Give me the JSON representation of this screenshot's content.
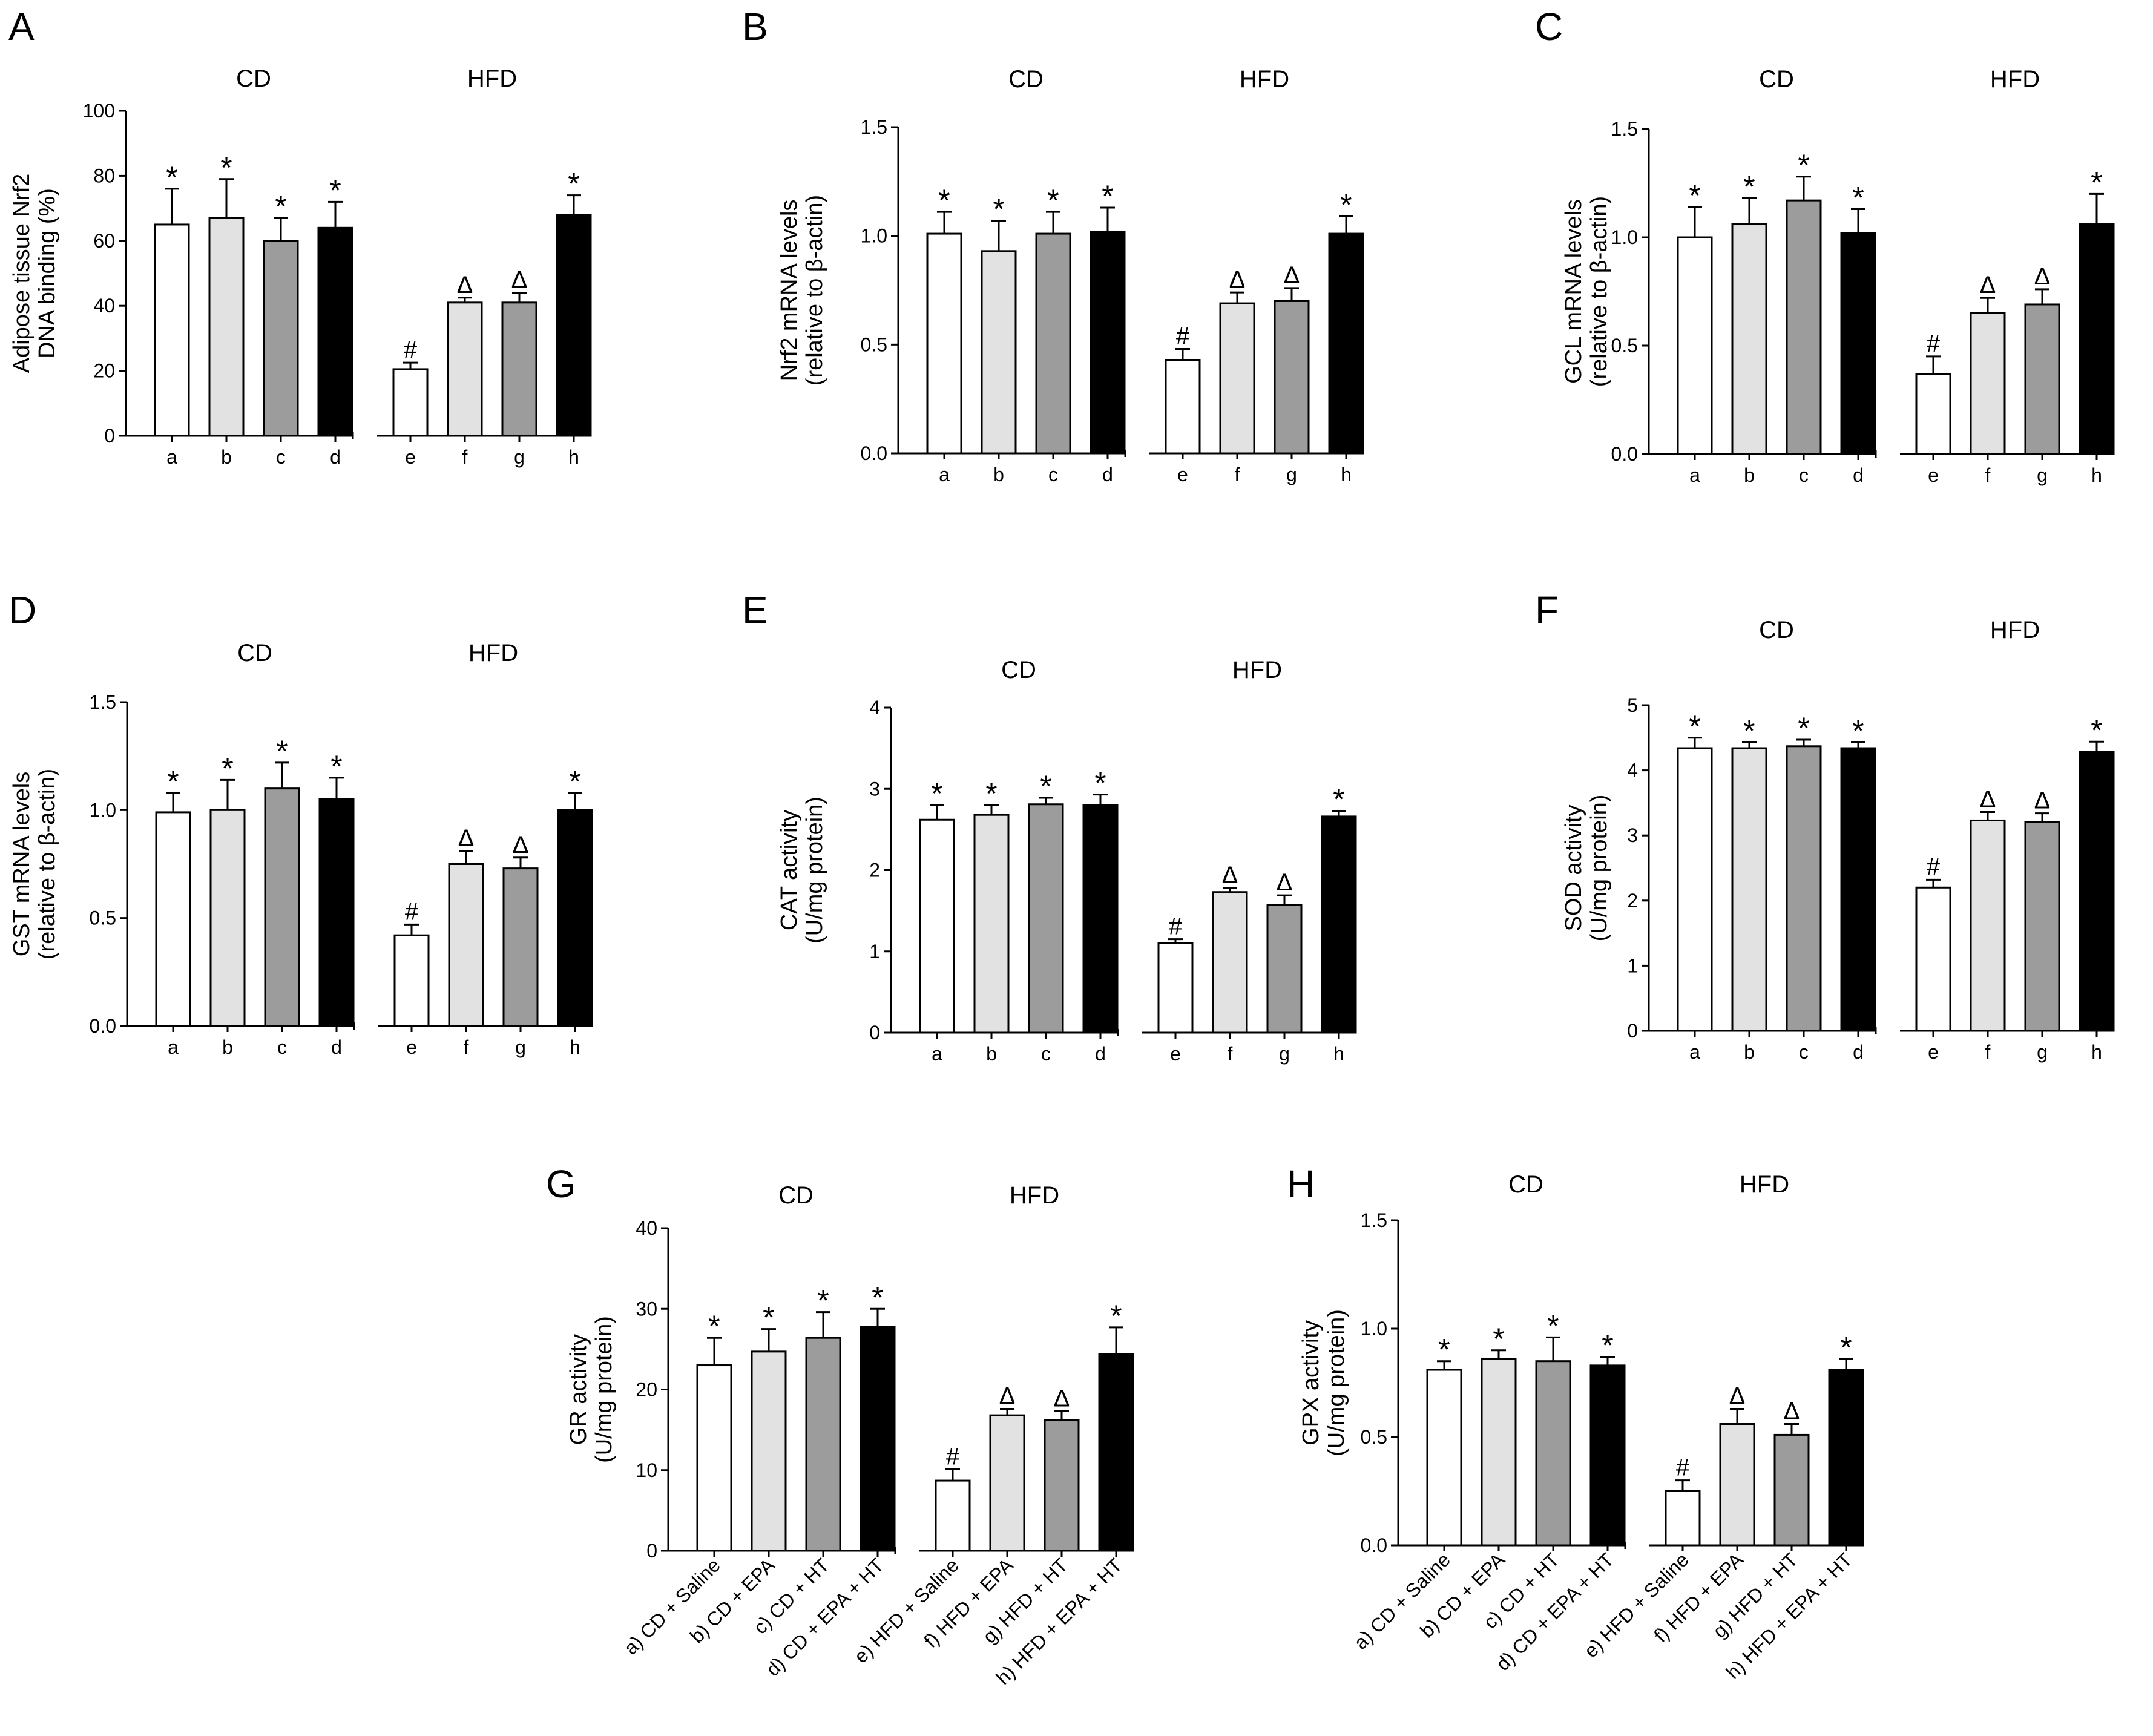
{
  "palette": {
    "a": "#ffffff",
    "b": "#e2e2e2",
    "c": "#9c9c9c",
    "d": "#000000",
    "e": "#ffffff",
    "f": "#e2e2e2",
    "g": "#9c9c9c",
    "h": "#000000"
  },
  "chart_data": [
    {
      "panel": "A",
      "type": "bar",
      "title": "",
      "groups": [
        "CD",
        "HFD"
      ],
      "categories": [
        "a",
        "b",
        "c",
        "d",
        "e",
        "f",
        "g",
        "h"
      ],
      "ylabel": [
        "Adipose tissue Nrf2",
        "DNA binding (%)"
      ],
      "ylim": [
        0,
        100
      ],
      "yticks": [
        "0",
        "20",
        "40",
        "60",
        "80",
        "100"
      ],
      "values": [
        65,
        67,
        60,
        64,
        20.5,
        41,
        41,
        68
      ],
      "errors": [
        11,
        12,
        7,
        8,
        2,
        1.5,
        3,
        6
      ],
      "marks": [
        "*",
        "*",
        "*",
        "*",
        "#",
        "Δ",
        "Δ",
        "*"
      ]
    },
    {
      "panel": "B",
      "type": "bar",
      "title": "",
      "groups": [
        "CD",
        "HFD"
      ],
      "categories": [
        "a",
        "b",
        "c",
        "d",
        "e",
        "f",
        "g",
        "h"
      ],
      "ylabel": [
        "Nrf2 mRNA levels",
        "(relative to β-actin)"
      ],
      "ylim": [
        0,
        1.5
      ],
      "yticks": [
        "0.0",
        "0.5",
        "1.0",
        "1.5"
      ],
      "values": [
        1.01,
        0.93,
        1.01,
        1.02,
        0.43,
        0.69,
        0.7,
        1.01
      ],
      "errors": [
        0.1,
        0.14,
        0.1,
        0.11,
        0.05,
        0.05,
        0.06,
        0.08
      ],
      "marks": [
        "*",
        "*",
        "*",
        "*",
        "#",
        "Δ",
        "Δ",
        "*"
      ]
    },
    {
      "panel": "C",
      "type": "bar",
      "title": "",
      "groups": [
        "CD",
        "HFD"
      ],
      "categories": [
        "a",
        "b",
        "c",
        "d",
        "e",
        "f",
        "g",
        "h"
      ],
      "ylabel": [
        "GCL mRNA levels",
        "(relative to β-actin)"
      ],
      "ylim": [
        0,
        1.5
      ],
      "yticks": [
        "0.0",
        "0.5",
        "1.0",
        "1.5"
      ],
      "values": [
        1.0,
        1.06,
        1.17,
        1.02,
        0.37,
        0.65,
        0.69,
        1.06
      ],
      "errors": [
        0.14,
        0.12,
        0.11,
        0.11,
        0.08,
        0.07,
        0.07,
        0.14
      ],
      "marks": [
        "*",
        "*",
        "*",
        "*",
        "#",
        "Δ",
        "Δ",
        "*"
      ]
    },
    {
      "panel": "D",
      "type": "bar",
      "title": "",
      "groups": [
        "CD",
        "HFD"
      ],
      "categories": [
        "a",
        "b",
        "c",
        "d",
        "e",
        "f",
        "g",
        "h"
      ],
      "ylabel": [
        "GST mRNA levels",
        "(relative to β-actin)"
      ],
      "ylim": [
        0,
        1.5
      ],
      "yticks": [
        "0.0",
        "0.5",
        "1.0",
        "1.5"
      ],
      "values": [
        0.99,
        1.0,
        1.1,
        1.05,
        0.42,
        0.75,
        0.73,
        1.0
      ],
      "errors": [
        0.09,
        0.14,
        0.12,
        0.1,
        0.05,
        0.06,
        0.05,
        0.08
      ],
      "marks": [
        "*",
        "*",
        "*",
        "*",
        "#",
        "Δ",
        "Δ",
        "*"
      ]
    },
    {
      "panel": "E",
      "type": "bar",
      "title": "",
      "groups": [
        "CD",
        "HFD"
      ],
      "categories": [
        "a",
        "b",
        "c",
        "d",
        "e",
        "f",
        "g",
        "h"
      ],
      "ylabel": [
        "CAT activity",
        "(U/mg protein)"
      ],
      "ylim": [
        0,
        4
      ],
      "yticks": [
        "0",
        "1",
        "2",
        "3",
        "4"
      ],
      "values": [
        2.62,
        2.68,
        2.81,
        2.8,
        1.1,
        1.73,
        1.57,
        2.66
      ],
      "errors": [
        0.18,
        0.12,
        0.08,
        0.13,
        0.05,
        0.05,
        0.12,
        0.07
      ],
      "marks": [
        "*",
        "*",
        "*",
        "*",
        "#",
        "Δ",
        "Δ",
        "*"
      ]
    },
    {
      "panel": "F",
      "type": "bar",
      "title": "",
      "groups": [
        "CD",
        "HFD"
      ],
      "categories": [
        "a",
        "b",
        "c",
        "d",
        "e",
        "f",
        "g",
        "h"
      ],
      "ylabel": [
        "SOD activity",
        "(U/mg protein)"
      ],
      "ylim": [
        0,
        5
      ],
      "yticks": [
        "0",
        "1",
        "2",
        "3",
        "4",
        "5"
      ],
      "values": [
        4.34,
        4.34,
        4.37,
        4.34,
        2.2,
        3.23,
        3.21,
        4.28
      ],
      "errors": [
        0.16,
        0.09,
        0.1,
        0.09,
        0.12,
        0.13,
        0.13,
        0.16
      ],
      "marks": [
        "*",
        "*",
        "*",
        "*",
        "#",
        "Δ",
        "Δ",
        "*"
      ]
    },
    {
      "panel": "G",
      "type": "bar",
      "title": "",
      "groups": [
        "CD",
        "HFD"
      ],
      "categories": [
        "a) CD + Saline",
        "b) CD + EPA",
        "c) CD + HT",
        "d) CD + EPA + HT",
        "e) HFD + Saline",
        "f) HFD + EPA",
        "g) HFD + HT",
        "h) HFD + EPA + HT"
      ],
      "ylabel": [
        "GR activity",
        "(U/mg protein)"
      ],
      "ylim": [
        0,
        40
      ],
      "yticks": [
        "0",
        "10",
        "20",
        "30",
        "40"
      ],
      "values": [
        23.0,
        24.7,
        26.4,
        27.8,
        8.7,
        16.8,
        16.2,
        24.4
      ],
      "errors": [
        3.4,
        2.8,
        3.2,
        2.2,
        1.4,
        0.8,
        1.1,
        3.3
      ],
      "marks": [
        "*",
        "*",
        "*",
        "*",
        "#",
        "Δ",
        "Δ",
        "*"
      ]
    },
    {
      "panel": "H",
      "type": "bar",
      "title": "",
      "groups": [
        "CD",
        "HFD"
      ],
      "categories": [
        "a) CD + Saline",
        "b) CD + EPA",
        "c) CD + HT",
        "d) CD + EPA + HT",
        "e) HFD + Saline",
        "f) HFD + EPA",
        "g) HFD + HT",
        "h) HFD + EPA + HT"
      ],
      "ylabel": [
        "GPX activity",
        "(U/mg protein)"
      ],
      "ylim": [
        0,
        1.5
      ],
      "yticks": [
        "0.0",
        "0.5",
        "1.0",
        "1.5"
      ],
      "values": [
        0.81,
        0.86,
        0.85,
        0.83,
        0.25,
        0.56,
        0.51,
        0.81
      ],
      "errors": [
        0.04,
        0.04,
        0.11,
        0.04,
        0.05,
        0.07,
        0.05,
        0.05
      ],
      "marks": [
        "*",
        "*",
        "*",
        "*",
        "#",
        "Δ",
        "Δ",
        "*"
      ]
    }
  ]
}
